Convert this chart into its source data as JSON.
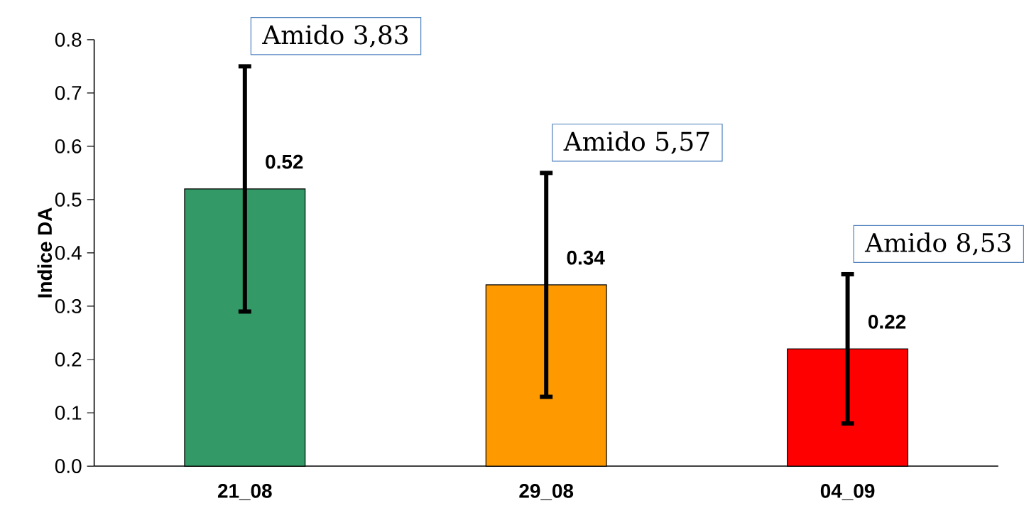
{
  "chart_data": {
    "type": "bar",
    "ylabel": "Indice DA",
    "categories": [
      "21_08",
      "29_08",
      "04_09"
    ],
    "values": [
      0.52,
      0.34,
      0.22
    ],
    "colors": [
      "#339966",
      "#ff9900",
      "#ff0000"
    ],
    "errors": [
      0.23,
      0.21,
      0.14
    ],
    "data_labels": true,
    "ylim": [
      0,
      0.8
    ],
    "yticks": [
      {
        "value": 0,
        "label": "0.0"
      },
      0.1,
      0.2,
      0.3,
      0.4,
      0.5,
      0.6,
      0.7,
      0.8
    ],
    "annotations": [
      "Amido 3,83",
      "Amido 5,57",
      "Amido 8,53"
    ]
  }
}
